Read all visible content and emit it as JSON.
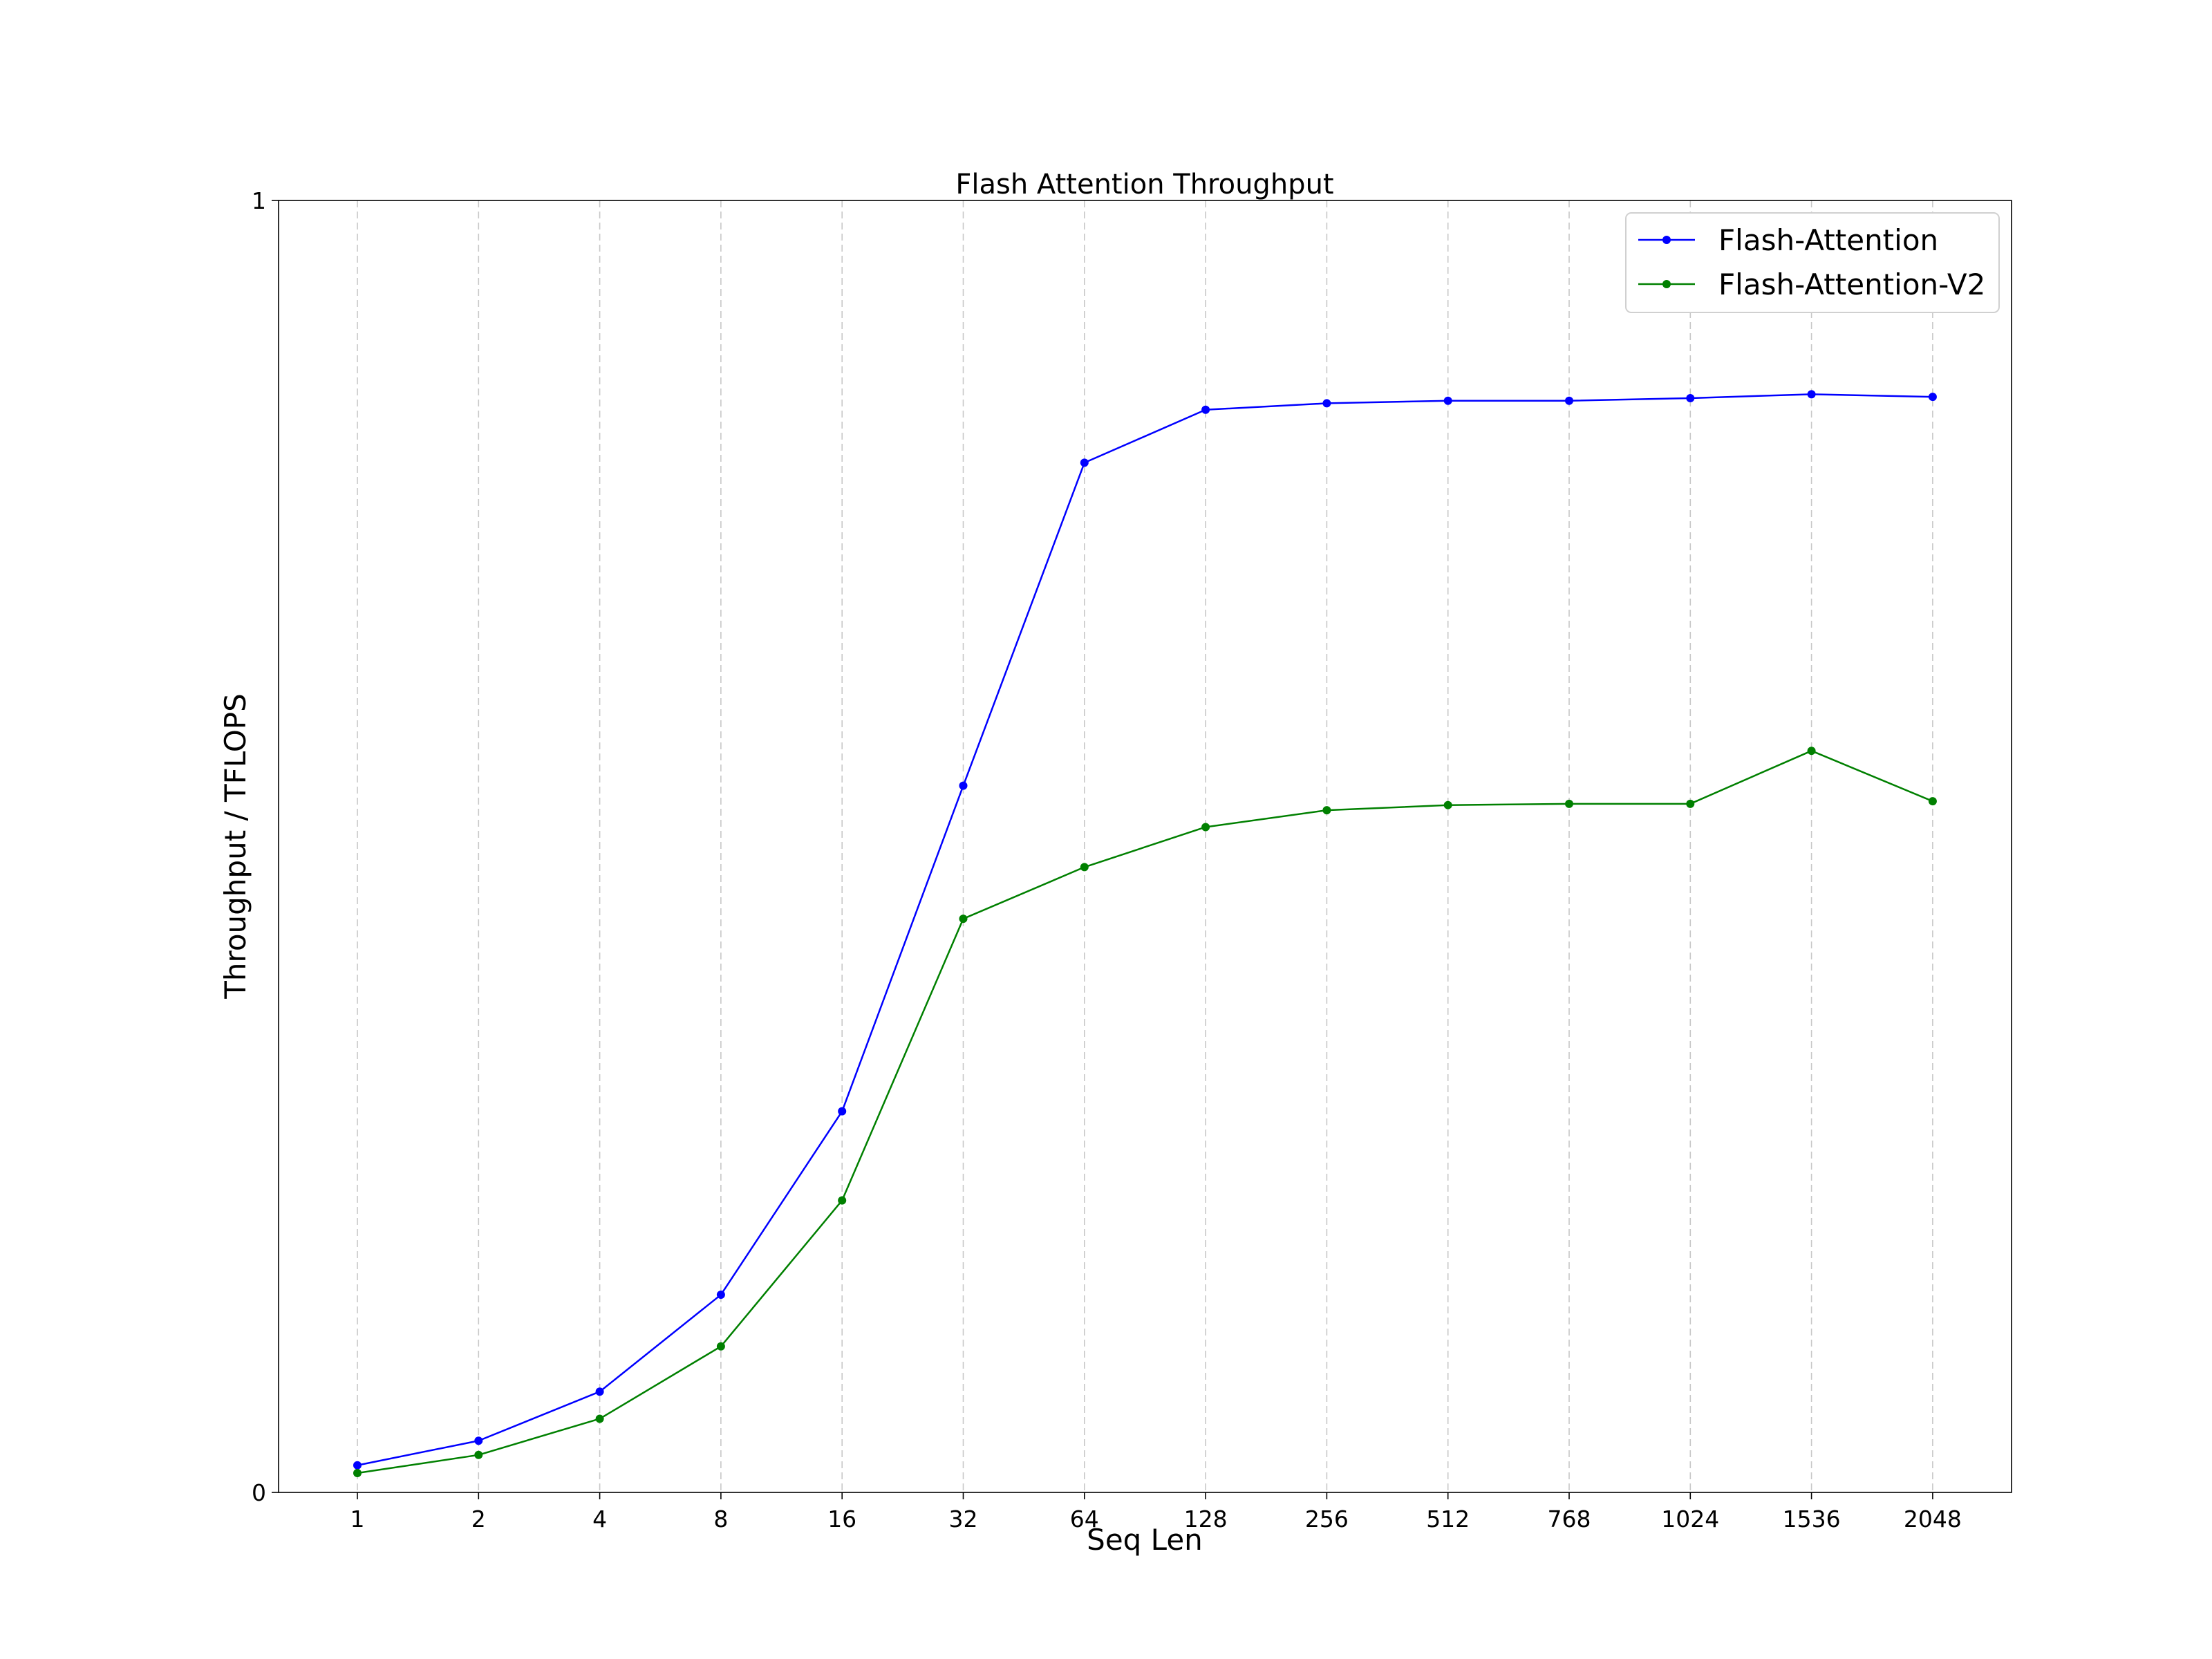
{
  "chart_data": {
    "type": "line",
    "title": "Flash Attention Throughput",
    "xlabel": "Seq Len",
    "ylabel": "Throughput / TFLOPS",
    "categories": [
      "1",
      "2",
      "4",
      "8",
      "16",
      "32",
      "64",
      "128",
      "256",
      "512",
      "768",
      "1024",
      "1536",
      "2048"
    ],
    "yticks": [
      "0",
      "1"
    ],
    "ylim": [
      0,
      1
    ],
    "grid": "x-dashed",
    "legend_position": "top-right",
    "series": [
      {
        "name": "Flash-Attention",
        "color": "#0000ff",
        "values": [
          0.021,
          0.04,
          0.078,
          0.153,
          0.295,
          0.547,
          0.797,
          0.838,
          0.843,
          0.845,
          0.845,
          0.847,
          0.85,
          0.848
        ]
      },
      {
        "name": "Flash-Attention-V2",
        "color": "#008000",
        "values": [
          0.015,
          0.029,
          0.057,
          0.113,
          0.226,
          0.444,
          0.484,
          0.515,
          0.528,
          0.532,
          0.533,
          0.533,
          0.574,
          0.535
        ]
      }
    ]
  }
}
